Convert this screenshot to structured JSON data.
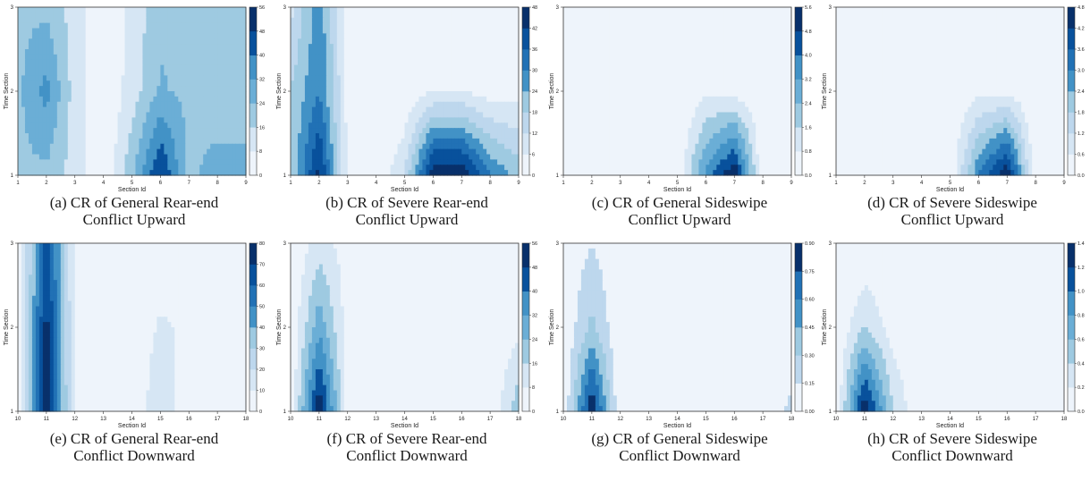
{
  "chart_data": [
    {
      "type": "heatmap",
      "subtype": "filled-contour",
      "caption_line1": "(a) CR of General Rear-end",
      "caption_line2": "Conflict Upward",
      "xlabel": "Section Id",
      "ylabel": "Time Section",
      "x": [
        1,
        2,
        3,
        4,
        5,
        6,
        7,
        8,
        9
      ],
      "y": [
        1,
        2,
        3
      ],
      "z": [
        [
          22,
          22,
          12,
          0,
          22,
          50,
          22,
          28,
          28
        ],
        [
          22,
          35,
          12,
          0,
          12,
          25,
          22,
          18,
          18
        ],
        [
          22,
          22,
          12,
          0,
          10,
          22,
          22,
          22,
          22
        ]
      ],
      "levels": [
        0,
        8,
        16,
        24,
        32,
        40,
        48,
        56
      ],
      "colorbar_ticks": [
        "56",
        "48",
        "40",
        "32",
        "24",
        "16",
        "8",
        "0"
      ]
    },
    {
      "type": "heatmap",
      "subtype": "filled-contour",
      "caption_line1": "(b) CR of Severe Rear-end",
      "caption_line2": "Conflict Upward",
      "xlabel": "Section Id",
      "ylabel": "Time Section",
      "x": [
        1,
        2,
        3,
        4,
        5,
        6,
        7,
        8,
        9
      ],
      "y": [
        1,
        2,
        3
      ],
      "z": [
        [
          18,
          45,
          4,
          0,
          12,
          48,
          48,
          30,
          22
        ],
        [
          18,
          30,
          4,
          0,
          0,
          6,
          6,
          3,
          3
        ],
        [
          10,
          28,
          4,
          0,
          0,
          0,
          0,
          0,
          0
        ]
      ],
      "levels": [
        0,
        6,
        12,
        18,
        24,
        30,
        36,
        42,
        48
      ],
      "colorbar_ticks": [
        "48",
        "42",
        "36",
        "30",
        "24",
        "18",
        "12",
        "6",
        "0"
      ]
    },
    {
      "type": "heatmap",
      "subtype": "filled-contour",
      "caption_line1": "(c)  CR of General Sideswipe",
      "caption_line2": "Conflict Upward",
      "xlabel": "Section Id",
      "ylabel": "Time Section",
      "x": [
        1,
        2,
        3,
        4,
        5,
        6,
        7,
        8,
        9
      ],
      "y": [
        1,
        2,
        3
      ],
      "z": [
        [
          0,
          0,
          0,
          0,
          0,
          3.5,
          5.6,
          0,
          0
        ],
        [
          0,
          0,
          0,
          0,
          0,
          0.6,
          0.5,
          0,
          0
        ],
        [
          0,
          0,
          0,
          0,
          0,
          0,
          0,
          0,
          0
        ]
      ],
      "levels": [
        0,
        0.8,
        1.6,
        2.4,
        3.2,
        4.0,
        4.8,
        5.6
      ],
      "colorbar_ticks": [
        "5.6",
        "4.8",
        "4.0",
        "3.2",
        "2.4",
        "1.6",
        "0.8",
        "0.0"
      ]
    },
    {
      "type": "heatmap",
      "subtype": "filled-contour",
      "caption_line1": "(d) CR of Severe Sideswipe",
      "caption_line2": "Conflict Upward",
      "xlabel": "Section Id",
      "ylabel": "Time Section",
      "x": [
        1,
        2,
        3,
        4,
        5,
        6,
        7,
        8,
        9
      ],
      "y": [
        1,
        2,
        3
      ],
      "z": [
        [
          0,
          0,
          0,
          0,
          0,
          3.0,
          4.8,
          0,
          0
        ],
        [
          0,
          0,
          0,
          0,
          0,
          0.4,
          0.4,
          0,
          0
        ],
        [
          0,
          0,
          0,
          0,
          0,
          0,
          0,
          0,
          0
        ]
      ],
      "levels": [
        0,
        0.6,
        1.2,
        1.8,
        2.4,
        3.0,
        3.6,
        4.2,
        4.8
      ],
      "colorbar_ticks": [
        "4.8",
        "4.2",
        "3.6",
        "3.0",
        "2.4",
        "1.8",
        "1.2",
        "0.6",
        "0.0"
      ]
    },
    {
      "type": "heatmap",
      "subtype": "filled-contour",
      "caption_line1": "(e) CR of General Rear-end",
      "caption_line2": "Conflict Downward",
      "xlabel": "Section Id",
      "ylabel": "Time Section",
      "x": [
        10,
        11,
        12,
        13,
        14,
        15,
        16,
        17,
        18
      ],
      "y": [
        1,
        2,
        3
      ],
      "z": [
        [
          0,
          80,
          8,
          0,
          0,
          20,
          0,
          0,
          10
        ],
        [
          0,
          75,
          8,
          0,
          0,
          12,
          8,
          0,
          0
        ],
        [
          0,
          65,
          8,
          0,
          0,
          0,
          0,
          0,
          0
        ]
      ],
      "levels": [
        0,
        10,
        20,
        30,
        40,
        50,
        60,
        70,
        80
      ],
      "colorbar_ticks": [
        "80",
        "70",
        "60",
        "50",
        "40",
        "30",
        "20",
        "10",
        "0"
      ]
    },
    {
      "type": "heatmap",
      "subtype": "filled-contour",
      "caption_line1": "(f) CR of Severe Rear-end",
      "caption_line2": "Conflict Downward",
      "xlabel": "Section Id",
      "ylabel": "Time Section",
      "x": [
        10,
        11,
        12,
        13,
        14,
        15,
        16,
        17,
        18
      ],
      "y": [
        1,
        2,
        3
      ],
      "z": [
        [
          0,
          56,
          4,
          0,
          0,
          5,
          0,
          0,
          22
        ],
        [
          0,
          30,
          4,
          0,
          0,
          0,
          0,
          0,
          6
        ],
        [
          0,
          12,
          4,
          0,
          0,
          0,
          0,
          0,
          0
        ]
      ],
      "levels": [
        0,
        8,
        16,
        24,
        32,
        40,
        48,
        56
      ],
      "colorbar_ticks": [
        "56",
        "48",
        "40",
        "32",
        "24",
        "16",
        "8",
        "0"
      ]
    },
    {
      "type": "heatmap",
      "subtype": "filled-contour",
      "caption_line1": "(g) CR of General Sideswipe",
      "caption_line2": "Conflict Downward",
      "xlabel": "Section Id",
      "ylabel": "Time Section",
      "x": [
        10,
        11,
        12,
        13,
        14,
        15,
        16,
        17,
        18
      ],
      "y": [
        1,
        2,
        3
      ],
      "z": [
        [
          0,
          0.9,
          0,
          0,
          0,
          0,
          0,
          0,
          0.2
        ],
        [
          0,
          0.35,
          0,
          0,
          0,
          0,
          0,
          0,
          0
        ],
        [
          0,
          0.15,
          0,
          0,
          0,
          0,
          0,
          0,
          0
        ]
      ],
      "levels": [
        0,
        0.15,
        0.3,
        0.45,
        0.6,
        0.75,
        0.9
      ],
      "colorbar_ticks": [
        "0.90",
        "0.75",
        "0.60",
        "0.45",
        "0.30",
        "0.15",
        "0.00"
      ]
    },
    {
      "type": "heatmap",
      "subtype": "filled-contour",
      "caption_line1": "(h) CR of Severe Sideswipe",
      "caption_line2": "Conflict Downward",
      "xlabel": "Section Id",
      "ylabel": "Time Section",
      "x": [
        10,
        11,
        12,
        13,
        14,
        15,
        16,
        17,
        18
      ],
      "y": [
        1,
        2,
        3
      ],
      "z": [
        [
          0,
          1.4,
          0.4,
          0,
          0,
          0.15,
          0.1,
          0,
          0
        ],
        [
          0,
          0.4,
          0.1,
          0,
          0,
          0,
          0,
          0,
          0
        ],
        [
          0,
          0,
          0,
          0,
          0,
          0,
          0,
          0,
          0
        ]
      ],
      "levels": [
        0,
        0.2,
        0.4,
        0.6,
        0.8,
        1.0,
        1.2,
        1.4
      ],
      "colorbar_ticks": [
        "1.4",
        "1.2",
        "1.0",
        "0.8",
        "0.6",
        "0.4",
        "0.2",
        "0.0"
      ]
    }
  ],
  "colors": {
    "ramp": [
      "#eef4fb",
      "#d6e6f4",
      "#bdd7ed",
      "#9ecae1",
      "#6baed6",
      "#4292c6",
      "#2171b5",
      "#08519c",
      "#08306b"
    ],
    "axis": "#333333"
  }
}
